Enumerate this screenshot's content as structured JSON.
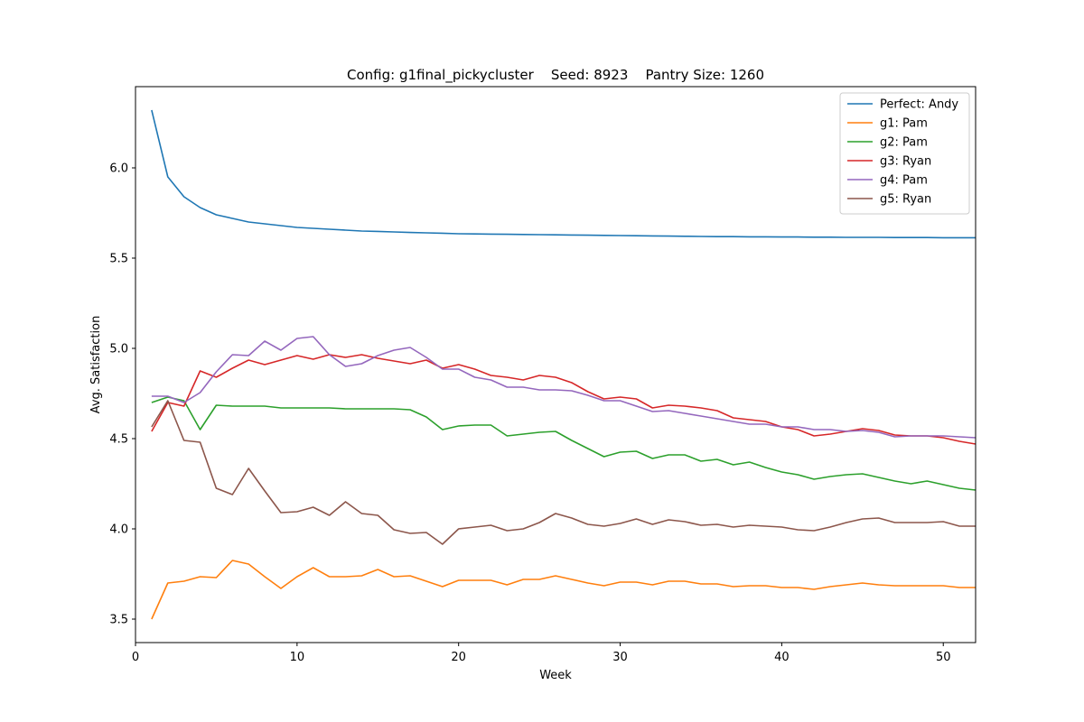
{
  "chart_data": {
    "type": "line",
    "title": "Config: g1final_pickycluster    Seed: 8923    Pantry Size: 1260",
    "xlabel": "Week",
    "ylabel": "Avg. Satisfaction",
    "xlim": [
      0,
      52
    ],
    "ylim": [
      3.37,
      6.45
    ],
    "xticks": [
      0,
      10,
      20,
      30,
      40,
      50
    ],
    "yticks": [
      3.5,
      4.0,
      4.5,
      5.0,
      5.5,
      6.0
    ],
    "ytick_labels": [
      "3.5",
      "4.0",
      "4.5",
      "5.0",
      "5.5",
      "6.0"
    ],
    "grid": false,
    "legend_position": "top-right",
    "x": [
      1,
      2,
      3,
      4,
      5,
      6,
      7,
      8,
      9,
      10,
      11,
      12,
      13,
      14,
      15,
      16,
      17,
      18,
      19,
      20,
      21,
      22,
      23,
      24,
      25,
      26,
      27,
      28,
      29,
      30,
      31,
      32,
      33,
      34,
      35,
      36,
      37,
      38,
      39,
      40,
      41,
      42,
      43,
      44,
      45,
      46,
      47,
      48,
      49,
      50,
      51,
      52
    ],
    "series": [
      {
        "name": "Perfect: Andy",
        "color": "#1f77b4",
        "values": [
          6.32,
          5.95,
          5.84,
          5.78,
          5.74,
          5.72,
          5.7,
          5.69,
          5.68,
          5.67,
          5.665,
          5.66,
          5.655,
          5.65,
          5.648,
          5.645,
          5.642,
          5.64,
          5.638,
          5.635,
          5.634,
          5.633,
          5.632,
          5.631,
          5.63,
          5.629,
          5.628,
          5.627,
          5.626,
          5.625,
          5.624,
          5.623,
          5.622,
          5.621,
          5.62,
          5.619,
          5.619,
          5.618,
          5.618,
          5.617,
          5.617,
          5.616,
          5.616,
          5.615,
          5.615,
          5.615,
          5.614,
          5.614,
          5.614,
          5.613,
          5.613,
          5.613
        ]
      },
      {
        "name": "g1: Pam",
        "color": "#ff7f0e",
        "values": [
          3.5,
          3.7,
          3.71,
          3.735,
          3.73,
          3.825,
          3.805,
          3.735,
          3.67,
          3.735,
          3.785,
          3.735,
          3.735,
          3.74,
          3.775,
          3.735,
          3.74,
          3.71,
          3.68,
          3.715,
          3.715,
          3.715,
          3.69,
          3.72,
          3.72,
          3.74,
          3.72,
          3.7,
          3.685,
          3.705,
          3.705,
          3.69,
          3.71,
          3.71,
          3.695,
          3.695,
          3.68,
          3.685,
          3.685,
          3.675,
          3.675,
          3.665,
          3.68,
          3.69,
          3.7,
          3.69,
          3.685,
          3.685,
          3.685,
          3.685,
          3.675,
          3.675
        ]
      },
      {
        "name": "g2: Pam",
        "color": "#2ca02c",
        "values": [
          4.7,
          4.73,
          4.71,
          4.55,
          4.685,
          4.68,
          4.68,
          4.68,
          4.67,
          4.67,
          4.67,
          4.67,
          4.665,
          4.665,
          4.665,
          4.665,
          4.66,
          4.62,
          4.55,
          4.57,
          4.575,
          4.575,
          4.515,
          4.525,
          4.535,
          4.54,
          4.49,
          4.445,
          4.4,
          4.425,
          4.43,
          4.39,
          4.41,
          4.41,
          4.375,
          4.385,
          4.355,
          4.37,
          4.34,
          4.315,
          4.3,
          4.275,
          4.29,
          4.3,
          4.305,
          4.285,
          4.265,
          4.25,
          4.265,
          4.245,
          4.225,
          4.215
        ]
      },
      {
        "name": "g3: Ryan",
        "color": "#d62728",
        "values": [
          4.54,
          4.7,
          4.68,
          4.875,
          4.84,
          4.89,
          4.935,
          4.91,
          4.935,
          4.96,
          4.94,
          4.965,
          4.95,
          4.965,
          4.945,
          4.93,
          4.915,
          4.935,
          4.89,
          4.91,
          4.885,
          4.85,
          4.84,
          4.825,
          4.85,
          4.84,
          4.81,
          4.76,
          4.72,
          4.73,
          4.72,
          4.67,
          4.685,
          4.68,
          4.67,
          4.655,
          4.615,
          4.605,
          4.595,
          4.565,
          4.55,
          4.515,
          4.525,
          4.54,
          4.555,
          4.545,
          4.52,
          4.515,
          4.515,
          4.505,
          4.485,
          4.47
        ]
      },
      {
        "name": "g4: Pam",
        "color": "#9467bd",
        "values": [
          4.735,
          4.735,
          4.7,
          4.755,
          4.87,
          4.965,
          4.96,
          5.04,
          4.99,
          5.055,
          5.065,
          4.965,
          4.9,
          4.915,
          4.96,
          4.99,
          5.005,
          4.95,
          4.885,
          4.885,
          4.84,
          4.825,
          4.785,
          4.785,
          4.77,
          4.77,
          4.765,
          4.74,
          4.71,
          4.71,
          4.68,
          4.65,
          4.655,
          4.64,
          4.625,
          4.61,
          4.595,
          4.58,
          4.58,
          4.565,
          4.565,
          4.55,
          4.55,
          4.54,
          4.545,
          4.535,
          4.51,
          4.515,
          4.515,
          4.515,
          4.51,
          4.505
        ]
      },
      {
        "name": "g5: Ryan",
        "color": "#8c564b",
        "values": [
          4.565,
          4.71,
          4.49,
          4.48,
          4.225,
          4.19,
          4.335,
          4.21,
          4.09,
          4.095,
          4.12,
          4.075,
          4.15,
          4.085,
          4.075,
          3.995,
          3.975,
          3.98,
          3.915,
          4.0,
          4.01,
          4.02,
          3.99,
          4.0,
          4.035,
          4.085,
          4.06,
          4.025,
          4.015,
          4.03,
          4.055,
          4.025,
          4.05,
          4.04,
          4.02,
          4.025,
          4.01,
          4.02,
          4.015,
          4.01,
          3.995,
          3.99,
          4.01,
          4.035,
          4.055,
          4.06,
          4.035,
          4.035,
          4.035,
          4.04,
          4.015,
          4.015
        ]
      }
    ]
  }
}
